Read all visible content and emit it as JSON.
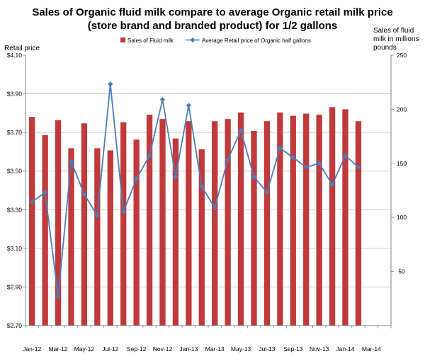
{
  "chart_data": {
    "type": "bar+line",
    "title_lines": [
      "Sales of Organic fluid milk compare to average Organic retail milk price",
      "(store brand and branded product) for 1/2 gallons"
    ],
    "left_axis_title": "Retail price",
    "right_axis_title_lines": [
      "Sales of fluid",
      "milk in millions",
      "pounds"
    ],
    "x_tick_labels": [
      "Jan-12",
      "Mar-12",
      "May-12",
      "Jul-12",
      "Sep-12",
      "Nov-12",
      "Jan-13",
      "Mar-13",
      "May-13",
      "Jul-13",
      "Sep-13",
      "Nov-13",
      "Jan-14",
      "Mar-14"
    ],
    "left_ticks": [
      "$4.10",
      "$3.90",
      "$3.70",
      "$3.50",
      "$3.30",
      "$3.10",
      "$2.90",
      "$2.70"
    ],
    "left_tick_values": [
      4.1,
      3.9,
      3.7,
      3.5,
      3.3,
      3.1,
      2.9,
      2.7
    ],
    "right_ticks": [
      "250",
      "200",
      "150",
      "100",
      "50"
    ],
    "right_tick_values": [
      250,
      200,
      150,
      100,
      50
    ],
    "left_range": [
      2.7,
      4.1
    ],
    "right_range": [
      0,
      250
    ],
    "months": [
      "Jan-12",
      "Feb-12",
      "Mar-12",
      "Apr-12",
      "May-12",
      "Jun-12",
      "Jul-12",
      "Aug-12",
      "Sep-12",
      "Oct-12",
      "Nov-12",
      "Dec-12",
      "Jan-13",
      "Feb-13",
      "Mar-13",
      "Apr-13",
      "May-13",
      "Jun-13",
      "Jul-13",
      "Aug-13",
      "Sep-13",
      "Oct-13",
      "Nov-13",
      "Dec-13",
      "Jan-14",
      "Feb-14"
    ],
    "series": [
      {
        "name": "Sales of Fluid milk",
        "kind": "bar",
        "axis": "right",
        "color": "#c0393b",
        "values": [
          193,
          176,
          190,
          164,
          187,
          164,
          162,
          188,
          172,
          195,
          191,
          173,
          189,
          163,
          189,
          191,
          197,
          180,
          189,
          197,
          194,
          196,
          195,
          202,
          200,
          189
        ]
      },
      {
        "name": "Average Retail price of Organic half gallons",
        "kind": "line",
        "axis": "left",
        "color": "#4a7ebb",
        "values": [
          3.34,
          3.39,
          2.85,
          3.55,
          3.38,
          3.27,
          3.95,
          3.29,
          3.46,
          3.58,
          3.87,
          3.47,
          3.84,
          3.42,
          3.31,
          3.56,
          3.71,
          3.47,
          3.39,
          3.62,
          3.57,
          3.52,
          3.54,
          3.43,
          3.58,
          3.52
        ]
      }
    ],
    "legend_position": "top-center",
    "grid": "horizontal"
  }
}
